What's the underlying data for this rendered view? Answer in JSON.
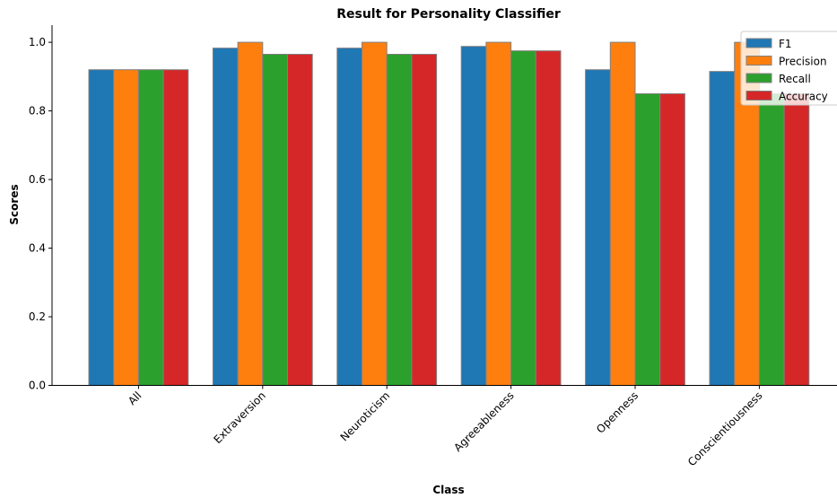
{
  "chart_data": {
    "type": "bar",
    "title": "Result for Personality Classifier",
    "xlabel": "Class",
    "ylabel": "Scores",
    "ylim": [
      0,
      1.05
    ],
    "yticks": [
      "0.0",
      "0.2",
      "0.4",
      "0.6",
      "0.8",
      "1.0"
    ],
    "categories": [
      "All",
      "Extraversion",
      "Neuroticism",
      "Agreeableness",
      "Openness",
      "Conscientiousness"
    ],
    "series": [
      {
        "name": "F1",
        "color": "#1f77b4",
        "values": [
          0.92,
          0.983,
          0.983,
          0.988,
          0.92,
          0.915
        ]
      },
      {
        "name": "Precision",
        "color": "#ff7f0e",
        "values": [
          0.92,
          1.0,
          1.0,
          1.0,
          1.0,
          1.0
        ]
      },
      {
        "name": "Recall",
        "color": "#2ca02c",
        "values": [
          0.92,
          0.965,
          0.965,
          0.975,
          0.85,
          0.85
        ]
      },
      {
        "name": "Accuracy",
        "color": "#d62728",
        "values": [
          0.92,
          0.965,
          0.965,
          0.975,
          0.85,
          0.85
        ]
      }
    ],
    "legend": "top-right",
    "grid": false
  }
}
